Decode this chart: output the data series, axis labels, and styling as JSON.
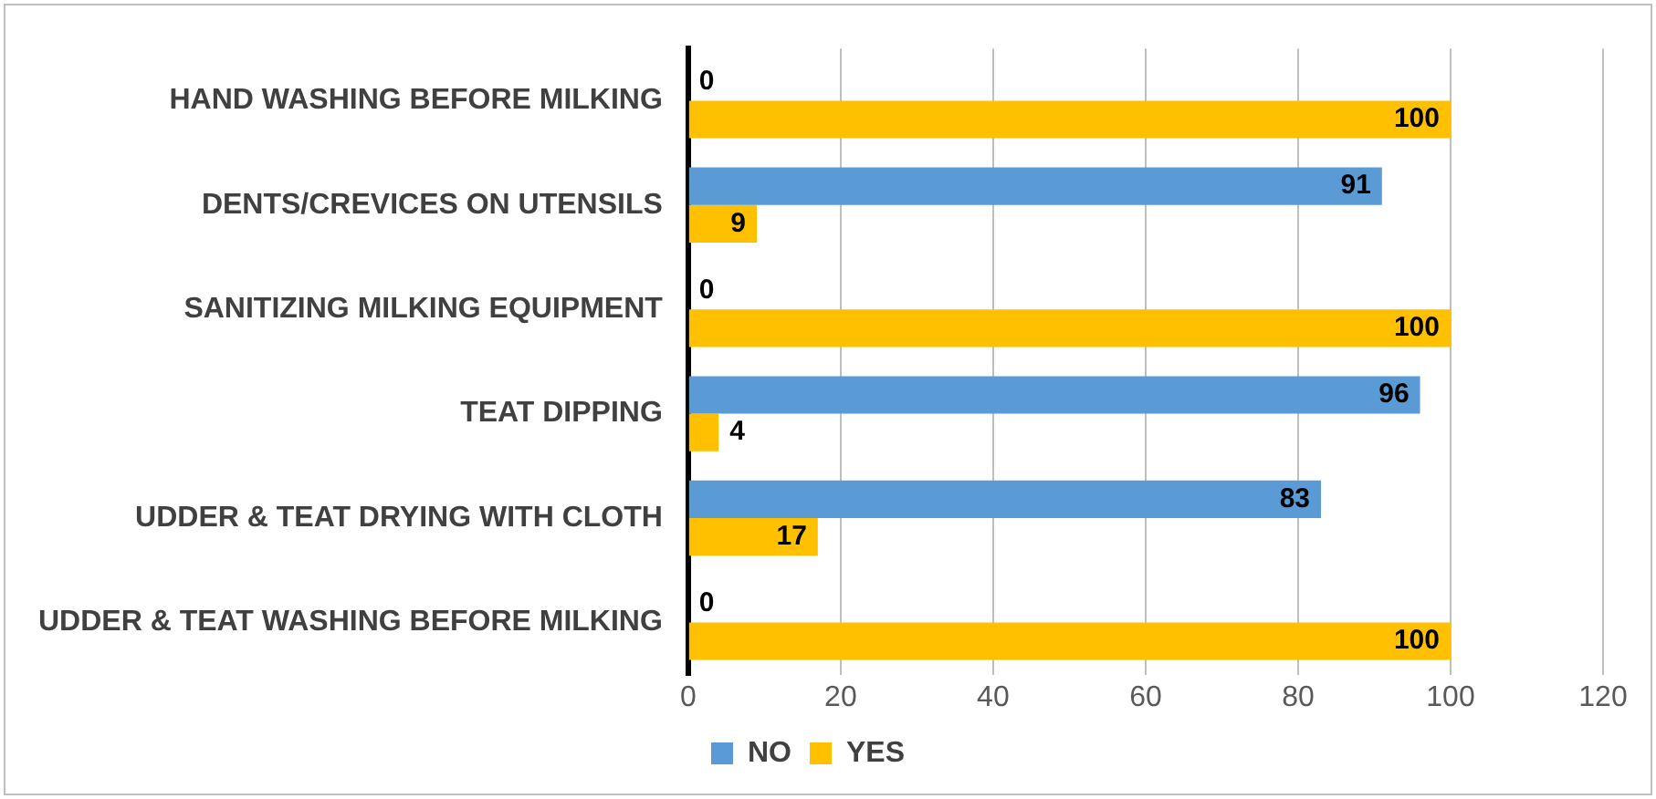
{
  "chart_data": {
    "type": "bar",
    "orientation": "horizontal",
    "categories": [
      "HAND WASHING BEFORE MILKING",
      "DENTS/CREVICES ON UTENSILS",
      "SANITIZING MILKING EQUIPMENT",
      "TEAT DIPPING",
      "UDDER & TEAT DRYING WITH CLOTH",
      "UDDER & TEAT WASHING BEFORE MILKING"
    ],
    "series": [
      {
        "name": "NO",
        "color": "#5b9bd5",
        "values": [
          0,
          91,
          0,
          96,
          83,
          0
        ]
      },
      {
        "name": "YES",
        "color": "#ffc000",
        "values": [
          100,
          9,
          100,
          4,
          17,
          100
        ]
      }
    ],
    "xlim": [
      0,
      120
    ],
    "xticks": [
      0,
      20,
      40,
      60,
      80,
      100,
      120
    ],
    "grid": "x",
    "legend": "bottom",
    "data_labels": true
  }
}
